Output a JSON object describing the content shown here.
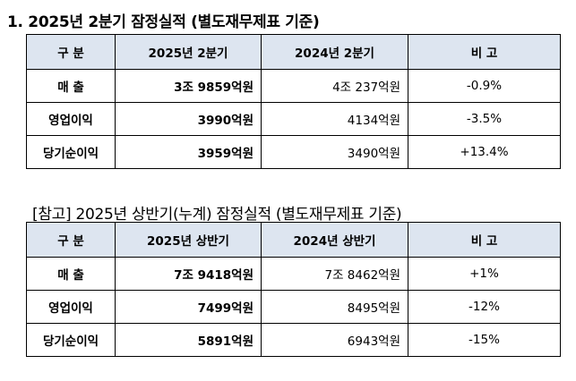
{
  "section1": {
    "title": "1. 2025년 2분기 잠정실적 (별도재무제표 기준)",
    "headers": [
      "구 분",
      "2025년 2분기",
      "2024년 2분기",
      "비 고"
    ],
    "rows": [
      {
        "label": "매 출",
        "current": "3조 9859억원",
        "previous": "4조 237억원",
        "note": "-0.9%"
      },
      {
        "label": "영업이익",
        "current": "3990억원",
        "previous": "4134억원",
        "note": "-3.5%"
      },
      {
        "label": "당기순이익",
        "current": "3959억원",
        "previous": "3490억원",
        "note": "+13.4%"
      }
    ]
  },
  "section2": {
    "title": "[참고] 2025년 상반기(누계) 잠정실적 (별도재무제표 기준)",
    "headers": [
      "구 분",
      "2025년 상반기",
      "2024년 상반기",
      "비 고"
    ],
    "rows": [
      {
        "label": "매 출",
        "current": "7조 9418억원",
        "previous": "7조 8462억원",
        "note": "+1%"
      },
      {
        "label": "영업이익",
        "current": "7499억원",
        "previous": "8495억원",
        "note": "-12%"
      },
      {
        "label": "당기순이익",
        "current": "5891억원",
        "previous": "6943억원",
        "note": "-15%"
      }
    ]
  },
  "colors": {
    "header_bg": "#dde5f0",
    "border": "#000000"
  }
}
